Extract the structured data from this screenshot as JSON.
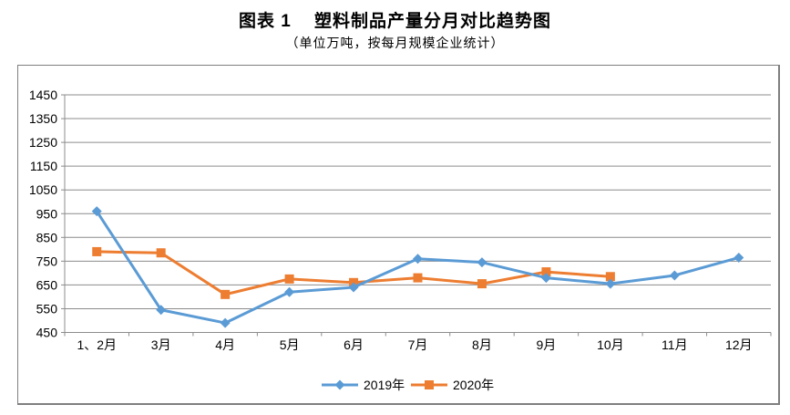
{
  "title": "图表 1    塑料制品产量分月对比趋势图",
  "subtitle": "（单位万吨，按每月规模企业统计）",
  "chart_data": {
    "type": "line",
    "title": "图表 1    塑料制品产量分月对比趋势图",
    "subtitle": "（单位万吨，按每月规模企业统计）",
    "categories": [
      "1、2月",
      "3月",
      "4月",
      "5月",
      "6月",
      "7月",
      "8月",
      "9月",
      "10月",
      "11月",
      "12月"
    ],
    "series": [
      {
        "name": "2019年",
        "color": "#5B9BD5",
        "marker": "diamond",
        "values": [
          960,
          545,
          490,
          620,
          640,
          760,
          745,
          680,
          655,
          690,
          765
        ]
      },
      {
        "name": "2020年",
        "color": "#ED7D31",
        "marker": "square",
        "values": [
          790,
          785,
          610,
          675,
          660,
          680,
          655,
          705,
          685,
          null,
          null
        ]
      }
    ],
    "ylim": [
      450,
      1450
    ],
    "ytick_step": 100,
    "ytick_labels": [
      "1450",
      "1350",
      "1250",
      "1150",
      "1050",
      "950",
      "850",
      "750",
      "650",
      "550",
      "450"
    ],
    "grid": true,
    "grid_color": "#8c8c8c",
    "axis_color": "#8c8c8c",
    "text_color": "#000000",
    "legend_position": "bottom"
  }
}
